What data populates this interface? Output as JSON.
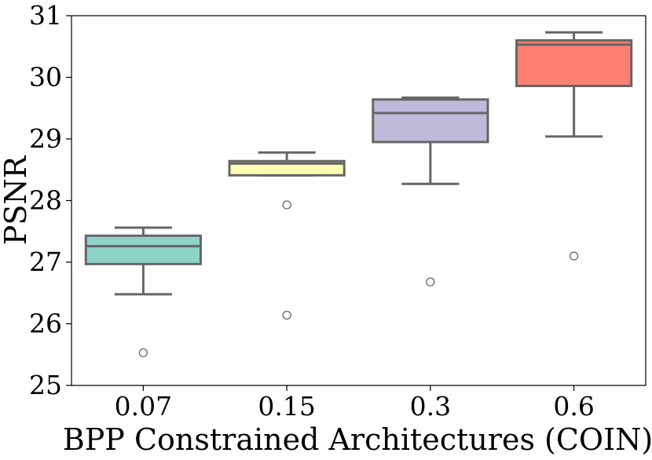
{
  "chart_data": {
    "type": "box",
    "xlabel": "BPP Constrained Architectures (COIN)",
    "ylabel": "PSNR",
    "ylim": [
      25,
      31
    ],
    "yticks": [
      "25",
      "26",
      "27",
      "28",
      "29",
      "30",
      "31"
    ],
    "categories": [
      "0.07",
      "0.15",
      "0.3",
      "0.6"
    ],
    "boxes": [
      {
        "category": "0.07",
        "whisker_low": 26.48,
        "q1": 26.97,
        "median": 27.26,
        "q3": 27.43,
        "whisker_high": 27.56,
        "outliers": [
          25.53
        ],
        "color": "#8dd3c7"
      },
      {
        "category": "0.15",
        "whisker_low": 28.41,
        "q1": 28.41,
        "median": 28.6,
        "q3": 28.64,
        "whisker_high": 28.78,
        "outliers": [
          27.93,
          26.14
        ],
        "color": "#ffffb3"
      },
      {
        "category": "0.3",
        "whisker_low": 28.27,
        "q1": 28.95,
        "median": 29.42,
        "q3": 29.64,
        "whisker_high": 29.67,
        "outliers": [
          26.68
        ],
        "color": "#bebada"
      },
      {
        "category": "0.6",
        "whisker_low": 29.04,
        "q1": 29.86,
        "median": 30.53,
        "q3": 30.6,
        "whisker_high": 30.73,
        "outliers": [
          27.1
        ],
        "color": "#fb8072"
      }
    ]
  }
}
